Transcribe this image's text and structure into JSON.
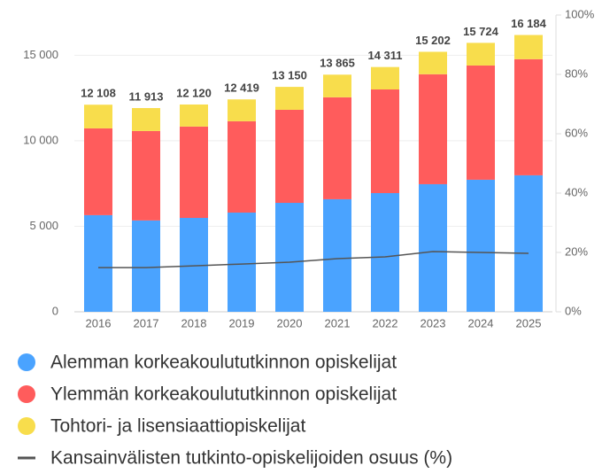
{
  "chart_data": {
    "type": "bar",
    "stacked": true,
    "categories": [
      "2016",
      "2017",
      "2018",
      "2019",
      "2020",
      "2021",
      "2022",
      "2023",
      "2024",
      "2025"
    ],
    "series": [
      {
        "name": "Alemman korkeakoulututkinnon opiskelijat",
        "color": "#4aa3ff",
        "values": [
          5650,
          5340,
          5490,
          5800,
          6370,
          6580,
          6940,
          7460,
          7720,
          7980
        ]
      },
      {
        "name": "Ylemmän korkeakoulututkinnon opiskelijat",
        "color": "#ff5c5c",
        "values": [
          5075,
          5230,
          5340,
          5340,
          5440,
          5960,
          6060,
          6430,
          6680,
          6790
        ]
      },
      {
        "name": "Tohtori- ja lisensiaattiopiskelijat",
        "color": "#f8dd4c",
        "values": [
          1383,
          1343,
          1290,
          1279,
          1340,
          1325,
          1311,
          1312,
          1324,
          1414
        ]
      },
      {
        "name": "Kansainvälisten tutkinto-opiskelijoiden osuus (%)",
        "color": "#555555",
        "type": "line",
        "axis": "y2",
        "values": [
          14.9,
          14.9,
          15.5,
          16.1,
          16.7,
          17.9,
          18.5,
          20.3,
          20,
          19.7
        ]
      }
    ],
    "totals": [
      12108,
      11913,
      12120,
      12419,
      13150,
      13865,
      14311,
      15202,
      15724,
      16184
    ],
    "total_labels": [
      "12 108",
      "11 913",
      "12 120",
      "12 419",
      "13 150",
      "13 865",
      "14 311",
      "15 202",
      "15 724",
      "16 184"
    ],
    "ylim": [
      0,
      17350
    ],
    "yticks": [
      0,
      {
        "value": 5000,
        "label": "5 000"
      },
      {
        "value": 10000,
        "label": "10 000"
      },
      {
        "value": 15000,
        "label": "15 000"
      }
    ],
    "y2lim": [
      0,
      100
    ],
    "y2ticks": [
      {
        "value": 0,
        "label": "0%"
      },
      {
        "value": 20,
        "label": "20%"
      },
      {
        "value": 40,
        "label": "40%"
      },
      {
        "value": 60,
        "label": "60%"
      },
      {
        "value": 80,
        "label": "80%"
      },
      {
        "value": 100,
        "label": "100%"
      }
    ],
    "grid": true,
    "legend": "bottom"
  }
}
